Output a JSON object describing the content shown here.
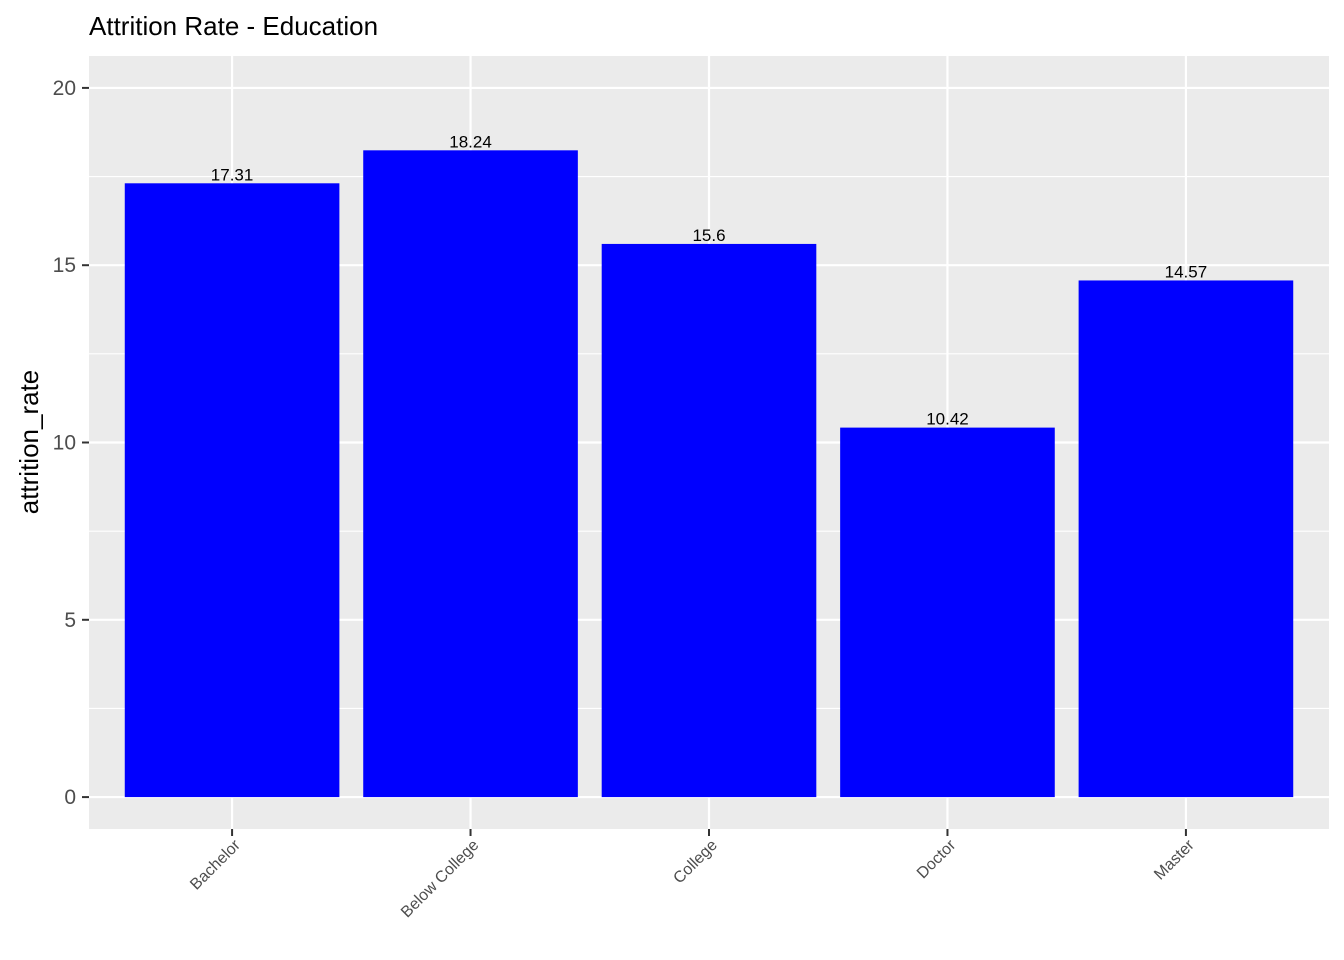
{
  "chart_data": {
    "type": "bar",
    "title": "Attrition Rate - Education",
    "xlabel": "",
    "ylabel": "attrition_rate",
    "categories": [
      "Bachelor",
      "Below College",
      "College",
      "Doctor",
      "Master"
    ],
    "values": [
      17.31,
      18.24,
      15.6,
      10.42,
      14.57
    ],
    "data_labels": [
      "17.31",
      "18.24",
      "15.6",
      "10.42",
      "14.57"
    ],
    "ylim": [
      -0.9,
      20.9
    ],
    "y_ticks": [
      0,
      5,
      10,
      15,
      20
    ],
    "y_tick_labels": [
      "0",
      "5",
      "10",
      "15",
      "20"
    ],
    "grid": true,
    "legend": "none",
    "x_tick_rotation": "45 degrees",
    "colors": {
      "bar_fill": "#0000ff",
      "panel_background": "#ebebeb",
      "grid_line": "#ffffff",
      "tick_text": "#4d4d4d",
      "axis_tick": "#333333",
      "text": "#000000"
    }
  }
}
